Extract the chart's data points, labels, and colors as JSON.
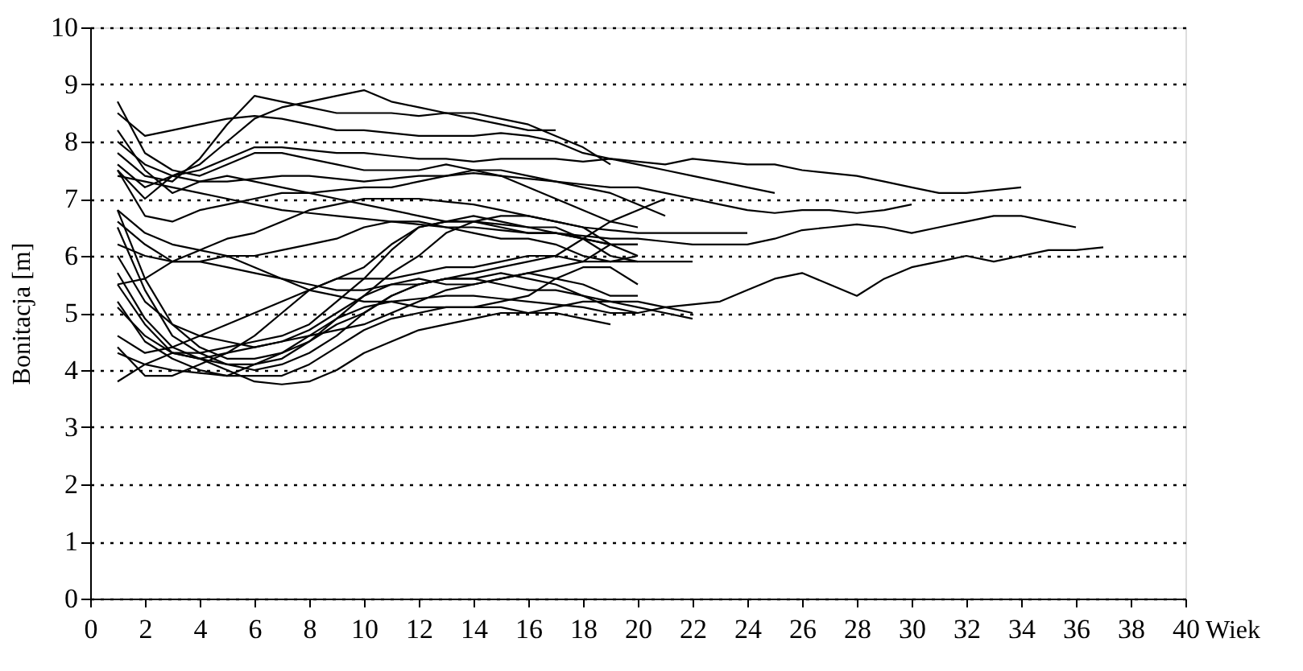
{
  "chart_data": {
    "type": "line",
    "xlabel": "Wiek",
    "ylabel": "Bonitacja [m]",
    "x": [
      1,
      2,
      3,
      4,
      5,
      6,
      7,
      8,
      9,
      10,
      11,
      12,
      13,
      14,
      15,
      16,
      17,
      18,
      19,
      20,
      21,
      22,
      23,
      24,
      25,
      26,
      27,
      28,
      29,
      30,
      31,
      32,
      33,
      34,
      35,
      36,
      37
    ],
    "xlim": [
      0,
      40
    ],
    "xticks": [
      0,
      2,
      4,
      6,
      8,
      10,
      12,
      14,
      16,
      18,
      20,
      22,
      24,
      26,
      28,
      30,
      32,
      34,
      36,
      38,
      40
    ],
    "ylim": [
      0,
      10
    ],
    "yticks": [
      0,
      1,
      2,
      3,
      4,
      5,
      6,
      7,
      8,
      9,
      10
    ],
    "grid": "y",
    "legend": false,
    "marker": "none",
    "line_style": "solid",
    "series": [
      {
        "color": "#000000",
        "values": [
          8.0,
          7.6,
          7.4,
          7.5,
          7.7,
          7.9,
          7.9,
          7.85,
          7.8,
          7.8,
          7.75,
          7.7,
          7.7,
          7.65,
          7.7,
          7.7,
          7.7,
          7.65,
          7.7,
          7.65,
          7.6,
          7.7,
          7.65,
          7.6,
          7.6,
          7.5,
          7.45,
          7.4,
          7.3,
          7.2,
          7.1,
          7.1,
          7.15,
          7.2,
          null,
          null,
          null
        ]
      },
      {
        "color": "#000000",
        "values": [
          7.4,
          7.3,
          7.2,
          7.1,
          7.0,
          6.9,
          6.8,
          6.75,
          6.7,
          6.65,
          6.6,
          6.55,
          6.5,
          6.5,
          6.45,
          6.4,
          6.4,
          6.35,
          6.3,
          6.3,
          6.25,
          6.2,
          6.2,
          6.2,
          6.3,
          6.45,
          6.5,
          6.55,
          6.5,
          6.4,
          6.5,
          6.6,
          6.7,
          6.7,
          6.6,
          6.5,
          null
        ]
      },
      {
        "color": "#000000",
        "values": [
          4.3,
          4.1,
          4.0,
          3.95,
          3.9,
          4.1,
          4.3,
          4.6,
          4.9,
          5.1,
          5.2,
          5.25,
          5.3,
          5.3,
          5.25,
          5.2,
          5.15,
          5.1,
          5.0,
          5.0,
          5.1,
          5.15,
          5.2,
          5.4,
          5.6,
          5.7,
          5.5,
          5.3,
          5.6,
          5.8,
          5.9,
          6.0,
          5.9,
          6.0,
          6.1,
          6.1,
          6.15
        ]
      },
      {
        "color": "#000000",
        "values": [
          7.6,
          7.2,
          7.4,
          7.3,
          7.3,
          7.35,
          7.4,
          7.4,
          7.35,
          7.3,
          7.35,
          7.4,
          7.4,
          7.45,
          7.4,
          7.35,
          7.3,
          7.25,
          7.2,
          7.2,
          7.1,
          7.0,
          6.9,
          6.8,
          6.75,
          6.8,
          6.8,
          6.75,
          6.8,
          6.9,
          null,
          null,
          null,
          null,
          null,
          null,
          null
        ]
      },
      {
        "color": "#000000",
        "values": [
          8.5,
          8.1,
          8.2,
          8.3,
          8.4,
          8.45,
          8.4,
          8.3,
          8.2,
          8.2,
          8.15,
          8.1,
          8.1,
          8.1,
          8.15,
          8.1,
          8.0,
          7.8,
          7.7,
          7.6,
          7.5,
          7.4,
          7.3,
          7.2,
          7.1,
          null,
          null,
          null,
          null,
          null,
          null,
          null,
          null,
          null,
          null,
          null,
          null
        ]
      },
      {
        "color": "#000000",
        "values": [
          5.5,
          5.6,
          5.9,
          6.1,
          6.3,
          6.4,
          6.6,
          6.8,
          6.9,
          7.0,
          7.0,
          7.0,
          6.95,
          6.9,
          6.8,
          6.7,
          6.6,
          6.5,
          6.45,
          6.4,
          6.4,
          6.4,
          6.4,
          6.4,
          null,
          null,
          null,
          null,
          null,
          null,
          null,
          null,
          null,
          null,
          null,
          null,
          null
        ]
      },
      {
        "color": "#000000",
        "values": [
          6.2,
          6.0,
          5.9,
          5.9,
          6.0,
          6.0,
          6.1,
          6.2,
          6.3,
          6.5,
          6.6,
          6.6,
          6.5,
          6.4,
          6.3,
          6.3,
          6.2,
          6.0,
          5.9,
          5.9,
          5.9,
          5.9,
          null,
          null,
          null,
          null,
          null,
          null,
          null,
          null,
          null,
          null,
          null,
          null,
          null,
          null,
          null
        ]
      },
      {
        "color": "#000000",
        "values": [
          7.5,
          7.0,
          7.4,
          7.6,
          8.0,
          8.4,
          8.6,
          8.7,
          8.8,
          8.9,
          8.7,
          8.6,
          8.5,
          8.5,
          8.4,
          8.3,
          8.1,
          7.9,
          7.6,
          null,
          null,
          null,
          null,
          null,
          null,
          null,
          null,
          null,
          null,
          null,
          null,
          null,
          null,
          null,
          null,
          null,
          null
        ]
      },
      {
        "color": "#000000",
        "values": [
          7.8,
          7.4,
          7.3,
          7.7,
          8.3,
          8.8,
          8.7,
          8.6,
          8.5,
          8.5,
          8.5,
          8.45,
          8.5,
          8.4,
          8.3,
          8.2,
          8.2,
          null,
          null,
          null,
          null,
          null,
          null,
          null,
          null,
          null,
          null,
          null,
          null,
          null,
          null,
          null,
          null,
          null,
          null,
          null,
          null
        ]
      },
      {
        "color": "#000000",
        "values": [
          8.7,
          7.8,
          7.5,
          7.4,
          7.6,
          7.8,
          7.8,
          7.7,
          7.6,
          7.5,
          7.5,
          7.5,
          7.6,
          7.5,
          7.4,
          7.2,
          7.0,
          6.8,
          6.6,
          6.5,
          null,
          null,
          null,
          null,
          null,
          null,
          null,
          null,
          null,
          null,
          null,
          null,
          null,
          null,
          null,
          null,
          null
        ]
      },
      {
        "color": "#000000",
        "values": [
          6.8,
          5.6,
          4.8,
          4.4,
          4.2,
          4.2,
          4.3,
          4.5,
          4.8,
          5.0,
          5.3,
          5.5,
          5.6,
          5.6,
          5.7,
          5.6,
          5.5,
          5.3,
          5.1,
          5.0,
          null,
          null,
          null,
          null,
          null,
          null,
          null,
          null,
          null,
          null,
          null,
          null,
          null,
          null,
          null,
          null,
          null
        ]
      },
      {
        "color": "#000000",
        "values": [
          6.5,
          5.4,
          4.6,
          4.3,
          4.1,
          4.1,
          4.2,
          4.5,
          4.9,
          5.3,
          5.7,
          6.0,
          6.4,
          6.6,
          6.7,
          6.7,
          6.6,
          6.5,
          6.2,
          6.0,
          null,
          null,
          null,
          null,
          null,
          null,
          null,
          null,
          null,
          null,
          null,
          null,
          null,
          null,
          null,
          null,
          null
        ]
      },
      {
        "color": "#000000",
        "values": [
          5.7,
          4.9,
          4.4,
          4.2,
          4.0,
          3.8,
          3.75,
          3.8,
          4.0,
          4.3,
          4.5,
          4.7,
          4.8,
          4.9,
          5.0,
          5.0,
          5.1,
          5.2,
          5.2,
          5.1,
          5.0,
          4.9,
          null,
          null,
          null,
          null,
          null,
          null,
          null,
          null,
          null,
          null,
          null,
          null,
          null,
          null,
          null
        ]
      },
      {
        "color": "#000000",
        "values": [
          5.2,
          4.5,
          4.2,
          4.0,
          3.9,
          3.9,
          3.9,
          4.1,
          4.4,
          4.7,
          4.9,
          5.0,
          5.1,
          5.1,
          5.1,
          5.0,
          5.0,
          4.9,
          4.8,
          null,
          null,
          null,
          null,
          null,
          null,
          null,
          null,
          null,
          null,
          null,
          null,
          null,
          null,
          null,
          null,
          null,
          null
        ]
      },
      {
        "color": "#000000",
        "values": [
          3.8,
          4.1,
          4.3,
          4.3,
          4.4,
          4.5,
          4.6,
          4.8,
          5.2,
          5.6,
          6.1,
          6.5,
          6.6,
          6.7,
          6.6,
          6.5,
          6.5,
          6.3,
          6.0,
          5.9,
          null,
          null,
          null,
          null,
          null,
          null,
          null,
          null,
          null,
          null,
          null,
          null,
          null,
          null,
          null,
          null,
          null
        ]
      },
      {
        "color": "#000000",
        "values": [
          6.0,
          5.2,
          4.8,
          4.6,
          4.5,
          4.4,
          4.5,
          4.7,
          5.0,
          5.3,
          5.5,
          5.6,
          5.5,
          5.5,
          5.6,
          5.7,
          5.6,
          5.5,
          5.3,
          5.3,
          null,
          null,
          null,
          null,
          null,
          null,
          null,
          null,
          null,
          null,
          null,
          null,
          null,
          null,
          null,
          null,
          null
        ]
      },
      {
        "color": "#000000",
        "values": [
          4.4,
          3.9,
          3.9,
          4.1,
          4.3,
          4.6,
          5.0,
          5.4,
          5.6,
          5.6,
          5.6,
          5.7,
          5.8,
          5.8,
          5.9,
          6.0,
          6.0,
          5.9,
          6.2,
          null,
          null,
          null,
          null,
          null,
          null,
          null,
          null,
          null,
          null,
          null,
          null,
          null,
          null,
          null,
          null,
          null,
          null
        ]
      },
      {
        "color": "#000000",
        "values": [
          6.6,
          6.2,
          5.9,
          5.9,
          5.8,
          5.7,
          5.6,
          5.5,
          5.4,
          5.4,
          5.5,
          5.5,
          5.6,
          5.6,
          5.5,
          5.4,
          5.4,
          5.3,
          5.2,
          5.2,
          5.1,
          5.0,
          null,
          null,
          null,
          null,
          null,
          null,
          null,
          null,
          null,
          null,
          null,
          null,
          null,
          null,
          null
        ]
      },
      {
        "color": "#000000",
        "values": [
          7.5,
          6.7,
          6.6,
          6.8,
          6.9,
          7.0,
          7.1,
          7.1,
          7.15,
          7.2,
          7.2,
          7.3,
          7.4,
          7.5,
          7.5,
          7.4,
          7.3,
          7.2,
          7.1,
          6.9,
          6.7,
          null,
          null,
          null,
          null,
          null,
          null,
          null,
          null,
          null,
          null,
          null,
          null,
          null,
          null,
          null,
          null
        ]
      },
      {
        "color": "#000000",
        "values": [
          6.8,
          6.4,
          6.2,
          6.1,
          6.0,
          5.8,
          5.6,
          5.4,
          5.3,
          5.2,
          5.2,
          5.1,
          5.1,
          5.1,
          5.2,
          5.3,
          5.6,
          5.8,
          5.8,
          5.5,
          null,
          null,
          null,
          null,
          null,
          null,
          null,
          null,
          null,
          null,
          null,
          null,
          null,
          null,
          null,
          null,
          null
        ]
      },
      {
        "color": "#000000",
        "values": [
          5.1,
          4.6,
          4.3,
          4.2,
          4.1,
          4.0,
          4.1,
          4.3,
          4.6,
          5.0,
          5.3,
          5.5,
          5.6,
          5.7,
          5.8,
          5.9,
          6.0,
          6.3,
          6.6,
          6.8,
          7.0,
          null,
          null,
          null,
          null,
          null,
          null,
          null,
          null,
          null,
          null,
          null,
          null,
          null,
          null,
          null,
          null
        ]
      },
      {
        "color": "#000000",
        "values": [
          8.2,
          7.5,
          7.1,
          7.3,
          7.4,
          7.3,
          7.2,
          7.1,
          7.0,
          6.9,
          6.8,
          6.7,
          6.6,
          6.6,
          6.5,
          6.4,
          6.4,
          6.3,
          6.2,
          6.2,
          null,
          null,
          null,
          null,
          null,
          null,
          null,
          null,
          null,
          null,
          null,
          null,
          null,
          null,
          null,
          null,
          null
        ]
      },
      {
        "color": "#000000",
        "values": [
          4.6,
          4.3,
          4.4,
          4.6,
          4.8,
          5.0,
          5.2,
          5.4,
          5.6,
          5.8,
          6.2,
          6.5,
          6.6,
          6.6,
          6.55,
          6.5,
          6.4,
          6.3,
          6.2,
          6.2,
          null,
          null,
          null,
          null,
          null,
          null,
          null,
          null,
          null,
          null,
          null,
          null,
          null,
          null,
          null,
          null,
          null
        ]
      },
      {
        "color": "#000000",
        "values": [
          5.5,
          4.8,
          4.3,
          4.2,
          4.3,
          4.4,
          4.5,
          4.6,
          4.7,
          4.8,
          5.0,
          5.2,
          5.4,
          5.5,
          5.6,
          5.7,
          5.8,
          5.9,
          5.9,
          6.0,
          null,
          null,
          null,
          null,
          null,
          null,
          null,
          null,
          null,
          null,
          null,
          null,
          null,
          null,
          null,
          null,
          null
        ]
      }
    ]
  }
}
